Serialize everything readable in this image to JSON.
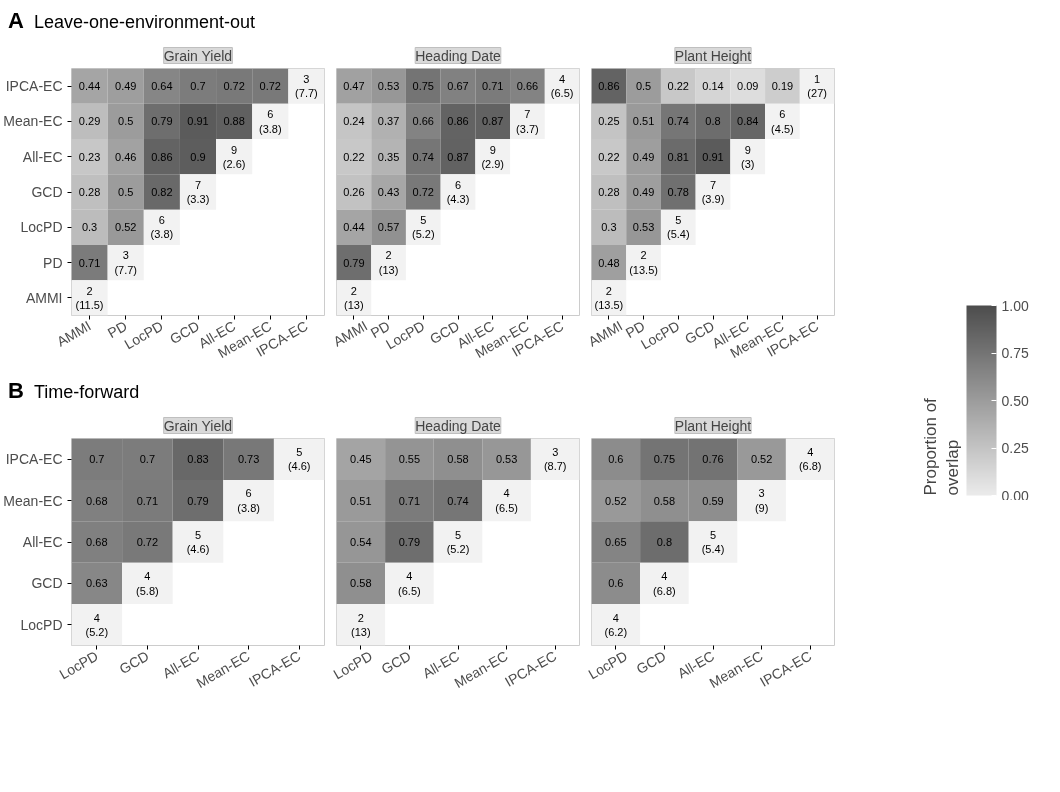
{
  "chart_data": [
    {
      "type": "heatmap",
      "title": "Grain Yield",
      "annotations": [
        "A",
        "Leave-one-environment-out"
      ],
      "categories": [
        "AMMI",
        "PD",
        "LocPD",
        "GCD",
        "All-EC",
        "Mean-EC",
        "IPCA-EC"
      ],
      "y_categories": [
        "IPCA-EC",
        "Mean-EC",
        "All-EC",
        "GCD",
        "LocPD",
        "PD",
        "AMMI"
      ],
      "cells": [
        [
          0.44,
          0.49,
          0.64,
          0.7,
          0.72,
          0.72,
          null
        ],
        [
          0.29,
          0.5,
          0.79,
          0.91,
          0.88,
          null,
          null
        ],
        [
          0.23,
          0.46,
          0.86,
          0.9,
          null,
          null,
          null
        ],
        [
          0.28,
          0.5,
          0.82,
          null,
          null,
          null,
          null
        ],
        [
          0.3,
          0.52,
          null,
          null,
          null,
          null,
          null
        ],
        [
          0.71,
          null,
          null,
          null,
          null,
          null,
          null
        ],
        [
          null,
          null,
          null,
          null,
          null,
          null,
          null
        ]
      ],
      "cell_labels": [
        [
          "0.44",
          "0.49",
          "0.64",
          "0.7",
          "0.72",
          "0.72",
          "3\n(7.7)"
        ],
        [
          "0.29",
          "0.5",
          "0.79",
          "0.91",
          "0.88",
          "6\n(3.8)",
          null
        ],
        [
          "0.23",
          "0.46",
          "0.86",
          "0.9",
          "9\n(2.6)",
          null,
          null
        ],
        [
          "0.28",
          "0.5",
          "0.82",
          "7\n(3.3)",
          null,
          null,
          null
        ],
        [
          "0.3",
          "0.52",
          "6\n(3.8)",
          null,
          null,
          null,
          null
        ],
        [
          "0.71",
          "3\n(7.7)",
          null,
          null,
          null,
          null,
          null
        ],
        [
          "2\n(11.5)",
          null,
          null,
          null,
          null,
          null,
          null
        ]
      ]
    },
    {
      "type": "heatmap",
      "title": "Heading Date",
      "tick_labels": "x",
      "categories": [
        "AMMI",
        "PD",
        "LocPD",
        "GCD",
        "All-EC",
        "Mean-EC",
        "IPCA-EC"
      ],
      "y_categories": [
        "IPCA-EC",
        "Mean-EC",
        "All-EC",
        "GCD",
        "LocPD",
        "PD",
        "AMMI"
      ],
      "cells": [
        [
          0.47,
          0.53,
          0.75,
          0.67,
          0.71,
          0.66,
          null
        ],
        [
          0.24,
          0.37,
          0.66,
          0.86,
          0.87,
          null,
          null
        ],
        [
          0.22,
          0.35,
          0.74,
          0.87,
          null,
          null,
          null
        ],
        [
          0.26,
          0.43,
          0.72,
          null,
          null,
          null,
          null
        ],
        [
          0.44,
          0.57,
          null,
          null,
          null,
          null,
          null
        ],
        [
          0.79,
          null,
          null,
          null,
          null,
          null,
          null
        ],
        [
          null,
          null,
          null,
          null,
          null,
          null,
          null
        ]
      ],
      "cell_labels": [
        [
          "0.47",
          "0.53",
          "0.75",
          "0.67",
          "0.71",
          "0.66",
          "4\n(6.5)"
        ],
        [
          "0.24",
          "0.37",
          "0.66",
          "0.86",
          "0.87",
          "7\n(3.7)",
          null
        ],
        [
          "0.22",
          "0.35",
          "0.74",
          "0.87",
          "9\n(2.9)",
          null,
          null
        ],
        [
          "0.26",
          "0.43",
          "0.72",
          "6\n(4.3)",
          null,
          null,
          null
        ],
        [
          "0.44",
          "0.57",
          "5\n(5.2)",
          null,
          null,
          null,
          null
        ],
        [
          "0.79",
          "2\n(13)",
          null,
          null,
          null,
          null,
          null
        ],
        [
          "2\n(13)",
          null,
          null,
          null,
          null,
          null,
          null
        ]
      ]
    },
    {
      "type": "heatmap",
      "title": "Plant Height",
      "tick_labels": "x",
      "clabel": "Proportion of overlap",
      "clim": [
        0,
        1
      ],
      "cticks": [
        {
          "value": 0,
          "label": "0.00"
        },
        {
          "value": 0.25,
          "label": "0.25"
        },
        {
          "value": 0.5,
          "label": "0.50"
        },
        {
          "value": 0.75,
          "label": "0.75"
        },
        {
          "value": 1,
          "label": "1.00"
        }
      ],
      "categories": [
        "AMMI",
        "PD",
        "LocPD",
        "GCD",
        "All-EC",
        "Mean-EC",
        "IPCA-EC"
      ],
      "y_categories": [
        "IPCA-EC",
        "Mean-EC",
        "All-EC",
        "GCD",
        "LocPD",
        "PD",
        "AMMI"
      ],
      "cells": [
        [
          0.86,
          0.5,
          0.22,
          0.14,
          0.09,
          0.19,
          null
        ],
        [
          0.25,
          0.51,
          0.74,
          0.8,
          0.84,
          null,
          null
        ],
        [
          0.22,
          0.49,
          0.81,
          0.91,
          null,
          null,
          null
        ],
        [
          0.28,
          0.49,
          0.78,
          null,
          null,
          null,
          null
        ],
        [
          0.3,
          0.53,
          null,
          null,
          null,
          null,
          null
        ],
        [
          0.48,
          null,
          null,
          null,
          null,
          null,
          null
        ],
        [
          null,
          null,
          null,
          null,
          null,
          null,
          null
        ]
      ],
      "cell_labels": [
        [
          "0.86",
          "0.5",
          "0.22",
          "0.14",
          "0.09",
          "0.19",
          "1\n(27)"
        ],
        [
          "0.25",
          "0.51",
          "0.74",
          "0.8",
          "0.84",
          "6\n(4.5)",
          null
        ],
        [
          "0.22",
          "0.49",
          "0.81",
          "0.91",
          "9\n(3)",
          null,
          null
        ],
        [
          "0.28",
          "0.49",
          "0.78",
          "7\n(3.9)",
          null,
          null,
          null
        ],
        [
          "0.3",
          "0.53",
          "5\n(5.4)",
          null,
          null,
          null,
          null
        ],
        [
          "0.48",
          "2\n(13.5)",
          null,
          null,
          null,
          null,
          null
        ],
        [
          "2\n(13.5)",
          null,
          null,
          null,
          null,
          null,
          null
        ]
      ]
    },
    {
      "type": "heatmap",
      "title": "Grain Yield",
      "annotations": [
        "B",
        "Time-forward"
      ],
      "categories": [
        "LocPD",
        "GCD",
        "All-EC",
        "Mean-EC",
        "IPCA-EC"
      ],
      "y_categories": [
        "IPCA-EC",
        "Mean-EC",
        "All-EC",
        "GCD",
        "LocPD"
      ],
      "cells": [
        [
          0.7,
          0.7,
          0.83,
          0.73,
          null
        ],
        [
          0.68,
          0.71,
          0.79,
          null,
          null
        ],
        [
          0.68,
          0.72,
          null,
          null,
          null
        ],
        [
          0.63,
          null,
          null,
          null,
          null
        ],
        [
          null,
          null,
          null,
          null,
          null
        ]
      ],
      "cell_labels": [
        [
          "0.7",
          "0.7",
          "0.83",
          "0.73",
          "5\n(4.6)"
        ],
        [
          "0.68",
          "0.71",
          "0.79",
          "6\n(3.8)",
          null
        ],
        [
          "0.68",
          "0.72",
          "5\n(4.6)",
          null,
          null
        ],
        [
          "0.63",
          "4\n(5.8)",
          null,
          null,
          null
        ],
        [
          "4\n(5.2)",
          null,
          null,
          null,
          null
        ]
      ]
    },
    {
      "type": "heatmap",
      "title": "Heading Date",
      "tick_labels": "x",
      "categories": [
        "LocPD",
        "GCD",
        "All-EC",
        "Mean-EC",
        "IPCA-EC"
      ],
      "y_categories": [
        "IPCA-EC",
        "Mean-EC",
        "All-EC",
        "GCD",
        "LocPD"
      ],
      "cells": [
        [
          0.45,
          0.55,
          0.58,
          0.53,
          null
        ],
        [
          0.51,
          0.71,
          0.74,
          null,
          null
        ],
        [
          0.54,
          0.79,
          null,
          null,
          null
        ],
        [
          0.58,
          null,
          null,
          null,
          null
        ],
        [
          null,
          null,
          null,
          null,
          null
        ]
      ],
      "cell_labels": [
        [
          "0.45",
          "0.55",
          "0.58",
          "0.53",
          "3\n(8.7)"
        ],
        [
          "0.51",
          "0.71",
          "0.74",
          "4\n(6.5)",
          null
        ],
        [
          "0.54",
          "0.79",
          "5\n(5.2)",
          null,
          null
        ],
        [
          "0.58",
          "4\n(6.5)",
          null,
          null,
          null
        ],
        [
          "2\n(13)",
          null,
          null,
          null,
          null
        ]
      ]
    },
    {
      "type": "heatmap",
      "title": "Plant Height",
      "tick_labels": "x",
      "categories": [
        "LocPD",
        "GCD",
        "All-EC",
        "Mean-EC",
        "IPCA-EC"
      ],
      "y_categories": [
        "IPCA-EC",
        "Mean-EC",
        "All-EC",
        "GCD",
        "LocPD"
      ],
      "cells": [
        [
          0.6,
          0.75,
          0.76,
          0.52,
          null
        ],
        [
          0.52,
          0.58,
          0.59,
          null,
          null
        ],
        [
          0.65,
          0.8,
          null,
          null,
          null
        ],
        [
          0.6,
          null,
          null,
          null,
          null
        ],
        [
          null,
          null,
          null,
          null,
          null
        ]
      ],
      "cell_labels": [
        [
          "0.6",
          "0.75",
          "0.76",
          "0.52",
          "4\n(6.8)"
        ],
        [
          "0.52",
          "0.58",
          "0.59",
          "3\n(9)",
          null
        ],
        [
          "0.65",
          "0.8",
          "5\n(5.4)",
          null,
          null
        ],
        [
          "0.6",
          "4\n(6.8)",
          null,
          null,
          null
        ],
        [
          "4\n(6.2)",
          null,
          null,
          null,
          null
        ]
      ]
    }
  ]
}
